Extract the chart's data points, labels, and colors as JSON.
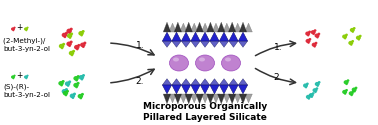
{
  "title": "Microporous Organically\nPillared Layered Silicate",
  "title_fontsize": 6.5,
  "label_top": "(2-Methyl-)/ \nbut-3-yn-2-ol",
  "label_bottom": "(S)-(R)-\nbut-3-yn-2-ol",
  "arrow_label_1": "1.",
  "arrow_label_2": "2.",
  "bg_color": "#ffffff",
  "text_color": "#000000",
  "red_mol_color": "#dd2233",
  "yellow_green_color": "#88cc00",
  "bright_green_color": "#22cc22",
  "teal_mol_color": "#22bbaa",
  "purple_sphere_color": "#bb77cc",
  "blue_pillar_color": "#2222cc",
  "blue_pillar_mid": "#4444bb",
  "dark_tri_color": "#222222",
  "gray_tri_color": "#888888",
  "arrow_color": "#333333"
}
